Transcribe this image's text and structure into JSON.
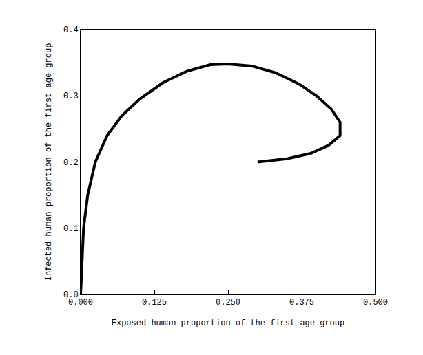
{
  "chart_data": {
    "type": "line",
    "x_label": "Exposed human proportion of the first age group",
    "y_label": "Infected human proportion of the first age group",
    "x": [
      0.0,
      0.002,
      0.005,
      0.012,
      0.025,
      0.045,
      0.07,
      0.1,
      0.14,
      0.18,
      0.22,
      0.25,
      0.29,
      0.33,
      0.37,
      0.4,
      0.425,
      0.44,
      0.44,
      0.42,
      0.39,
      0.35,
      0.3
    ],
    "values": [
      0.0,
      0.05,
      0.1,
      0.15,
      0.2,
      0.24,
      0.27,
      0.295,
      0.32,
      0.337,
      0.347,
      0.348,
      0.345,
      0.335,
      0.318,
      0.3,
      0.28,
      0.26,
      0.24,
      0.225,
      0.213,
      0.205,
      0.2
    ],
    "color": "#000000",
    "xlim": [
      0,
      0.5
    ],
    "ylim": [
      0,
      0.4
    ],
    "xticks": [
      {
        "value": 0,
        "label": "0.000"
      },
      0.125,
      {
        "value": 0.25,
        "label": "0.250"
      },
      0.375,
      {
        "value": 0.5,
        "label": "0.500"
      }
    ],
    "yticks": [
      {
        "value": 0,
        "label": "0.0"
      },
      0.1,
      0.2,
      0.3,
      0.4
    ],
    "grid": false
  }
}
